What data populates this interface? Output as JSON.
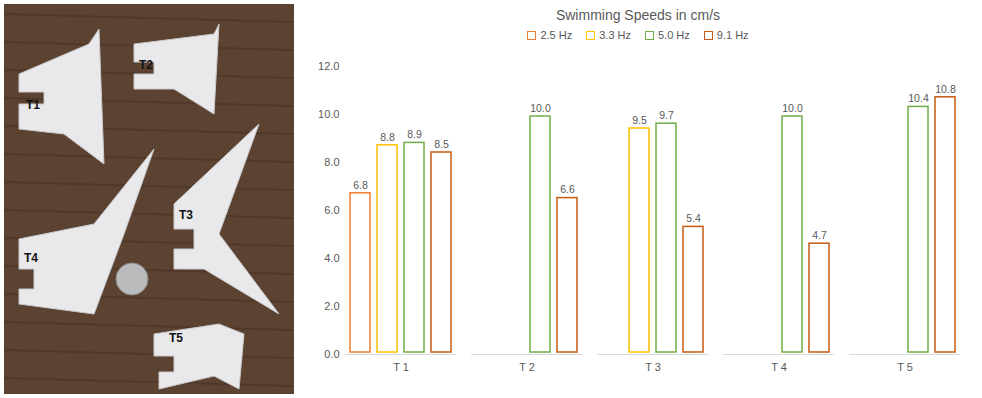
{
  "chart_data": {
    "type": "bar",
    "title": "Swimming Speeds in cm/s",
    "categories": [
      "T 1",
      "T 2",
      "T 3",
      "T 4",
      "T 5"
    ],
    "series": [
      {
        "name": "2.5 Hz",
        "color": "#ed7d31",
        "values": [
          6.8,
          null,
          null,
          null,
          null
        ],
        "value_labels": [
          "6.8",
          null,
          null,
          null,
          null
        ]
      },
      {
        "name": "3.3 Hz",
        "color": "#ffc000",
        "values": [
          8.8,
          null,
          9.5,
          null,
          null
        ],
        "value_labels": [
          "8.8",
          null,
          "9.5",
          null,
          null
        ]
      },
      {
        "name": "5.0 Hz",
        "color": "#70ad47",
        "values": [
          8.9,
          10.0,
          9.7,
          10.0,
          10.4
        ],
        "value_labels": [
          "8.9",
          "10.0",
          "9.7",
          "10.0",
          "10.4"
        ]
      },
      {
        "name": "9.1 Hz",
        "color": "#c55a11",
        "values": [
          8.5,
          6.6,
          5.4,
          4.7,
          10.8
        ],
        "value_labels": [
          "8.5",
          "6.6",
          "5.4",
          "4.7",
          "10.8"
        ]
      }
    ],
    "ylim": [
      0,
      12
    ],
    "yticks": [
      {
        "value": 0,
        "label": "0.0"
      },
      {
        "value": 2,
        "label": "2.0"
      },
      {
        "value": 4,
        "label": "4.0"
      },
      {
        "value": 6,
        "label": "6.0"
      },
      {
        "value": 8,
        "label": "8.0"
      },
      {
        "value": 10,
        "label": "10.0"
      },
      {
        "value": 12,
        "label": "12.0"
      }
    ],
    "grid": false,
    "legend": "top",
    "data_labels": true
  },
  "photo": {
    "labels": [
      "T1",
      "T2",
      "T3",
      "T4",
      "T5"
    ]
  }
}
